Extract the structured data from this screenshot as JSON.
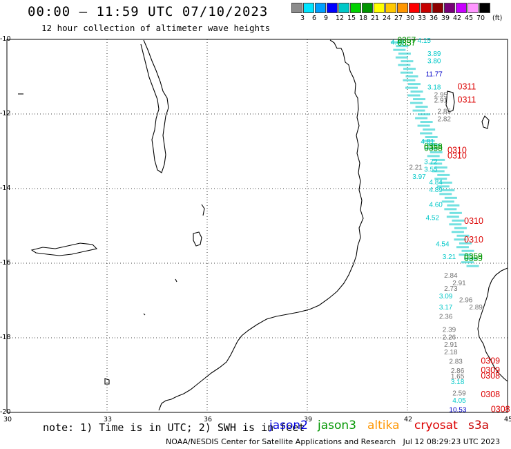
{
  "header": {
    "title": "00:00 — 11:59 UTC 07/10/2023",
    "subtitle": "12 hour collection of altimeter wave heights"
  },
  "scale": {
    "unit": "(ft)",
    "colors": [
      "#8c8c8c",
      "#00e5ff",
      "#00a0ff",
      "#0000ff",
      "#00c8c8",
      "#00d200",
      "#009600",
      "#ffff00",
      "#ffc800",
      "#ff9600",
      "#ff0000",
      "#c80000",
      "#8c0000",
      "#780078",
      "#c800ff",
      "#ff96ff",
      "#000000"
    ],
    "labels": [
      "3",
      "6",
      "9",
      "12",
      "15",
      "18",
      "21",
      "24",
      "27",
      "30",
      "33",
      "36",
      "39",
      "42",
      "45",
      "70"
    ]
  },
  "axes": {
    "x_labels": [
      "30",
      "33",
      "36",
      "39",
      "42",
      "45"
    ],
    "y_labels": [
      "-10",
      "-12",
      "-14",
      "-16",
      "-18",
      "-20"
    ],
    "lon_range": [
      30,
      45
    ],
    "lat_range": [
      -20,
      -10
    ]
  },
  "tracks": {
    "jason3_labels": [
      {
        "text": "0357",
        "lon": 41.7,
        "lat": -10.0
      },
      {
        "text": "0357",
        "lon": 41.7,
        "lat": -10.07
      },
      {
        "text": "0358",
        "lon": 42.5,
        "lat": -12.85
      },
      {
        "text": "0358",
        "lon": 42.5,
        "lat": -12.9
      },
      {
        "text": "0359",
        "lon": 43.7,
        "lat": -15.8
      },
      {
        "text": "0359",
        "lon": 43.7,
        "lat": -15.85
      }
    ],
    "cryosat_labels": [
      {
        "text": "0311",
        "lon": 43.5,
        "lat": -11.25
      },
      {
        "text": "0311",
        "lon": 43.5,
        "lat": -11.6
      },
      {
        "text": "0310",
        "lon": 43.2,
        "lat": -12.95
      },
      {
        "text": "0310",
        "lon": 43.2,
        "lat": -13.1
      },
      {
        "text": "0310",
        "lon": 43.7,
        "lat": -14.85
      },
      {
        "text": "0310",
        "lon": 43.7,
        "lat": -15.35
      },
      {
        "text": "0309",
        "lon": 44.2,
        "lat": -18.6
      },
      {
        "text": "0309",
        "lon": 44.2,
        "lat": -18.85
      },
      {
        "text": "0308",
        "lon": 44.2,
        "lat": -19.0
      },
      {
        "text": "0308",
        "lon": 44.2,
        "lat": -19.5
      },
      {
        "text": "0308",
        "lon": 44.5,
        "lat": -19.9
      }
    ],
    "values": [
      {
        "text": "4.40",
        "lon": 41.5,
        "lat": -10.05,
        "color": "#00c8c8"
      },
      {
        "text": "4.15",
        "lon": 42.3,
        "lat": -10.0,
        "color": "#00c8c8"
      },
      {
        "text": "3.89",
        "lon": 42.6,
        "lat": -10.35,
        "color": "#00c8c8"
      },
      {
        "text": "3.80",
        "lon": 42.6,
        "lat": -10.55,
        "color": "#00c8c8"
      },
      {
        "text": "11.77",
        "lon": 42.55,
        "lat": -10.9,
        "color": "#0000c8"
      },
      {
        "text": "3.18",
        "lon": 42.6,
        "lat": -11.25,
        "color": "#00c8c8"
      },
      {
        "text": "2.95",
        "lon": 42.8,
        "lat": -11.45,
        "color": "#707070"
      },
      {
        "text": "2.91",
        "lon": 42.8,
        "lat": -11.6,
        "color": "#707070"
      },
      {
        "text": "2.85",
        "lon": 42.9,
        "lat": -11.9,
        "color": "#707070"
      },
      {
        "text": "2.82",
        "lon": 42.9,
        "lat": -12.1,
        "color": "#707070"
      },
      {
        "text": "4.81",
        "lon": 42.4,
        "lat": -12.7,
        "color": "#00c8c8"
      },
      {
        "text": "3.72",
        "lon": 42.5,
        "lat": -13.25,
        "color": "#00c8c8"
      },
      {
        "text": "3.55",
        "lon": 42.5,
        "lat": -13.45,
        "color": "#00c8c8"
      },
      {
        "text": "2.21",
        "lon": 42.05,
        "lat": -13.4,
        "color": "#707070"
      },
      {
        "text": "3.97",
        "lon": 42.15,
        "lat": -13.65,
        "color": "#00c8c8"
      },
      {
        "text": "4.84",
        "lon": 42.65,
        "lat": -13.8,
        "color": "#00c8c8"
      },
      {
        "text": "4.89",
        "lon": 42.65,
        "lat": -14.0,
        "color": "#00c8c8"
      },
      {
        "text": "4.60",
        "lon": 42.65,
        "lat": -14.4,
        "color": "#00c8c8"
      },
      {
        "text": "4.52",
        "lon": 42.55,
        "lat": -14.75,
        "color": "#00c8c8"
      },
      {
        "text": "4.54",
        "lon": 42.85,
        "lat": -15.45,
        "color": "#00c8c8"
      },
      {
        "text": "3.21",
        "lon": 43.05,
        "lat": -15.8,
        "color": "#00c8c8"
      },
      {
        "text": "2.84",
        "lon": 43.1,
        "lat": -16.3,
        "color": "#707070"
      },
      {
        "text": "2.91",
        "lon": 43.35,
        "lat": -16.5,
        "color": "#707070"
      },
      {
        "text": "2.73",
        "lon": 43.1,
        "lat": -16.65,
        "color": "#707070"
      },
      {
        "text": "3.09",
        "lon": 42.95,
        "lat": -16.85,
        "color": "#00c8c8"
      },
      {
        "text": "2.96",
        "lon": 43.55,
        "lat": -16.95,
        "color": "#707070"
      },
      {
        "text": "2.89",
        "lon": 43.85,
        "lat": -17.15,
        "color": "#707070"
      },
      {
        "text": "3.17",
        "lon": 42.95,
        "lat": -17.15,
        "color": "#00c8c8"
      },
      {
        "text": "2.36",
        "lon": 42.95,
        "lat": -17.4,
        "color": "#707070"
      },
      {
        "text": "2.39",
        "lon": 43.05,
        "lat": -17.75,
        "color": "#707070"
      },
      {
        "text": "2.26",
        "lon": 43.05,
        "lat": -17.95,
        "color": "#707070"
      },
      {
        "text": "2.91",
        "lon": 43.1,
        "lat": -18.15,
        "color": "#707070"
      },
      {
        "text": "2.18",
        "lon": 43.1,
        "lat": -18.35,
        "color": "#707070"
      },
      {
        "text": "2.83",
        "lon": 43.25,
        "lat": -18.6,
        "color": "#707070"
      },
      {
        "text": "2.86",
        "lon": 43.3,
        "lat": -18.85,
        "color": "#707070"
      },
      {
        "text": "1.65",
        "lon": 43.3,
        "lat": -19.0,
        "color": "#707070"
      },
      {
        "text": "3.18",
        "lon": 43.3,
        "lat": -19.15,
        "color": "#00c8c8"
      },
      {
        "text": "2.59",
        "lon": 43.35,
        "lat": -19.45,
        "color": "#707070"
      },
      {
        "text": "4.05",
        "lon": 43.35,
        "lat": -19.65,
        "color": "#00c8c8"
      },
      {
        "text": "10.53",
        "lon": 43.25,
        "lat": -19.9,
        "color": "#0000c8"
      }
    ]
  },
  "footer": {
    "note": "note: 1) Time is in UTC; 2) SWH is in feet",
    "satellites": [
      {
        "name": "jason2",
        "color": "#0000dc"
      },
      {
        "name": "jason3",
        "color": "#009600"
      },
      {
        "name": "altika",
        "color": "#ff9600"
      },
      {
        "name": "cryosat",
        "color": "#dc0000"
      },
      {
        "name": "s3a",
        "color": "#c80000"
      }
    ],
    "credit": "NOAA/NESDIS Center for Satellite Applications and Research   Jul 12 08:29:23 UTC 2023"
  }
}
